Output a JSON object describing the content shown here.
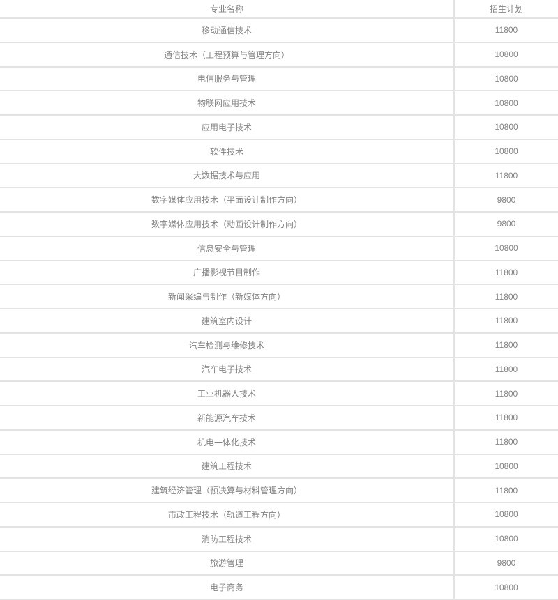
{
  "colors": {
    "background": "#ffffff",
    "text": "#848484",
    "border": "#e3e3e3"
  },
  "table": {
    "columns": [
      {
        "label": "专业名称"
      },
      {
        "label": "招生计划"
      }
    ],
    "rows": [
      {
        "major": "移动通信技术",
        "plan": "11800"
      },
      {
        "major": "通信技术（工程预算与管理方向）",
        "plan": "10800"
      },
      {
        "major": "电信服务与管理",
        "plan": "10800"
      },
      {
        "major": "物联网应用技术",
        "plan": "10800"
      },
      {
        "major": "应用电子技术",
        "plan": "10800"
      },
      {
        "major": "软件技术",
        "plan": "10800"
      },
      {
        "major": "大数据技术与应用",
        "plan": "11800"
      },
      {
        "major": "数字媒体应用技术（平面设计制作方向）",
        "plan": "9800"
      },
      {
        "major": "数字媒体应用技术（动画设计制作方向）",
        "plan": "9800"
      },
      {
        "major": "信息安全与管理",
        "plan": "10800"
      },
      {
        "major": "广播影视节目制作",
        "plan": "11800"
      },
      {
        "major": "新闻采编与制作（新媒体方向）",
        "plan": "11800"
      },
      {
        "major": "建筑室内设计",
        "plan": "11800"
      },
      {
        "major": "汽车检测与维修技术",
        "plan": "11800"
      },
      {
        "major": "汽车电子技术",
        "plan": "11800"
      },
      {
        "major": "工业机器人技术",
        "plan": "11800"
      },
      {
        "major": "新能源汽车技术",
        "plan": "11800"
      },
      {
        "major": "机电一体化技术",
        "plan": "11800"
      },
      {
        "major": "建筑工程技术",
        "plan": "10800"
      },
      {
        "major": "建筑经济管理（预决算与材料管理方向）",
        "plan": "11800"
      },
      {
        "major": "市政工程技术（轨道工程方向）",
        "plan": "10800"
      },
      {
        "major": "消防工程技术",
        "plan": "10800"
      },
      {
        "major": "旅游管理",
        "plan": "9800"
      },
      {
        "major": "电子商务",
        "plan": "10800"
      }
    ]
  }
}
